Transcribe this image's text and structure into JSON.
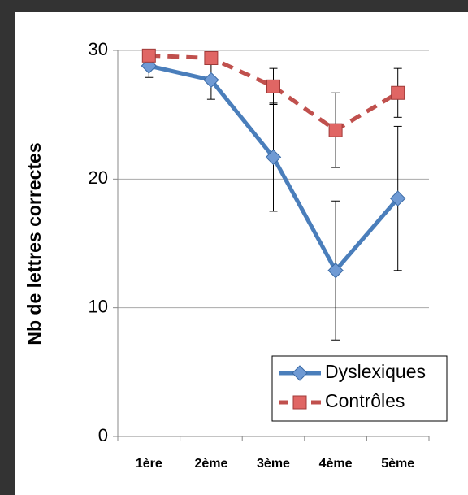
{
  "chart_data": {
    "type": "line",
    "y_label": "Nb de lettres correctes",
    "categories": [
      "1ère",
      "2ème",
      "3ème",
      "4ème",
      "5ème"
    ],
    "series": [
      {
        "name": "Dyslexiques",
        "color": "#4a7ebb",
        "marker": "diamond",
        "dash": false,
        "values": [
          28.8,
          27.7,
          21.7,
          12.9,
          18.5
        ],
        "errors": [
          0.9,
          1.5,
          4.2,
          5.4,
          5.6
        ]
      },
      {
        "name": "Contrôles",
        "color": "#c0504d",
        "marker": "square",
        "dash": true,
        "values": [
          29.6,
          29.4,
          27.2,
          23.8,
          26.7
        ],
        "errors": [
          0.3,
          0.3,
          1.4,
          2.9,
          1.9
        ]
      }
    ],
    "ylim": [
      0,
      30
    ],
    "yticks": [
      0,
      10,
      20,
      30
    ],
    "grid": true,
    "legend": "lower right"
  }
}
